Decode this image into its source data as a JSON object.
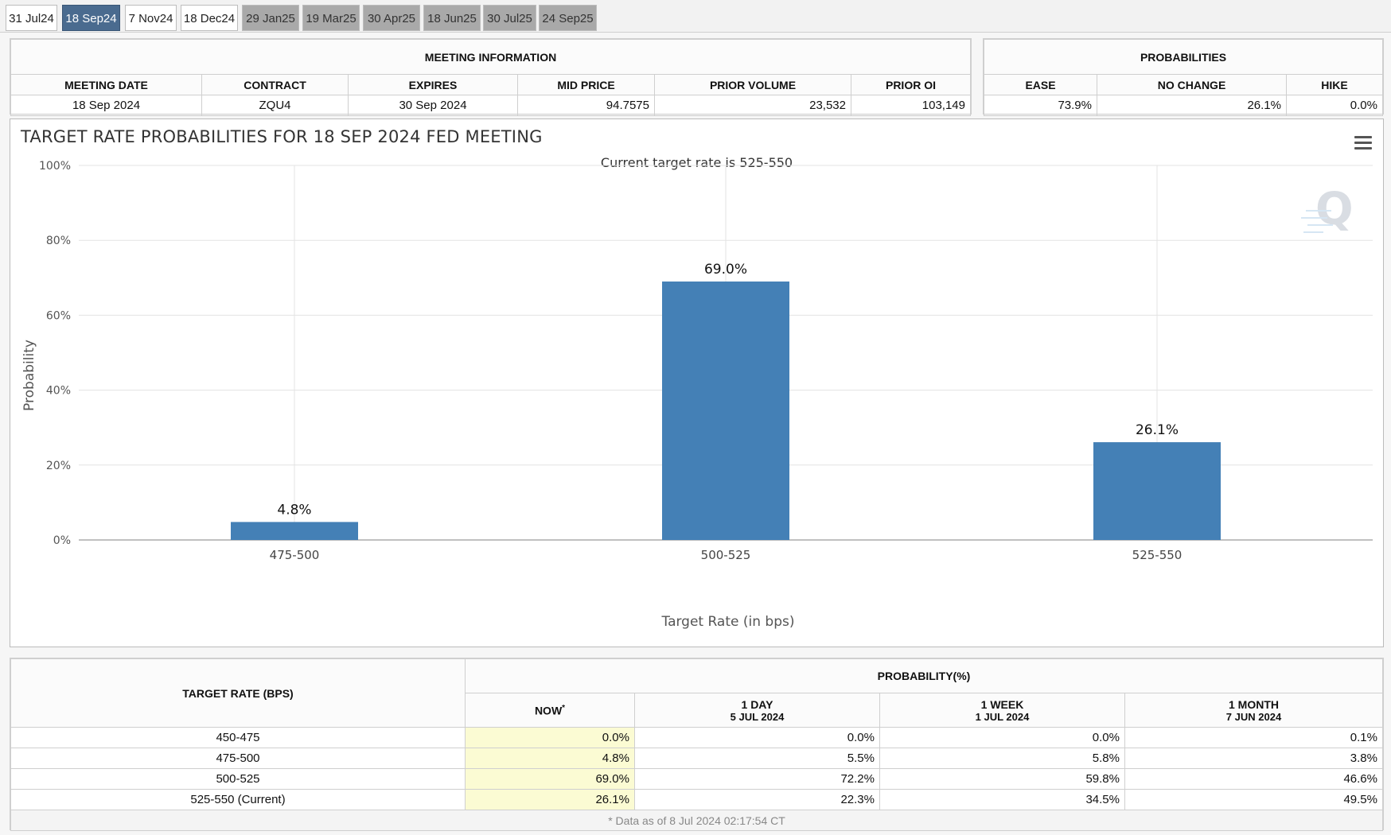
{
  "tabs": [
    {
      "label": "31 Jul24",
      "state": "plain"
    },
    {
      "label": "18 Sep24",
      "state": "active"
    },
    {
      "label": "7 Nov24",
      "state": "plain"
    },
    {
      "label": "18 Dec24",
      "state": "plain"
    },
    {
      "label": "29 Jan25",
      "state": "future"
    },
    {
      "label": "19 Mar25",
      "state": "future"
    },
    {
      "label": "30 Apr25",
      "state": "future"
    },
    {
      "label": "18 Jun25",
      "state": "future"
    },
    {
      "label": "30 Jul25",
      "state": "future"
    },
    {
      "label": "24 Sep25",
      "state": "future"
    }
  ],
  "meeting_info": {
    "section_title": "MEETING INFORMATION",
    "headers": [
      "MEETING DATE",
      "CONTRACT",
      "EXPIRES",
      "MID PRICE",
      "PRIOR VOLUME",
      "PRIOR OI"
    ],
    "values": [
      "18 Sep 2024",
      "ZQU4",
      "30 Sep 2024",
      "94.7575",
      "23,532",
      "103,149"
    ]
  },
  "probabilities": {
    "section_title": "PROBABILITIES",
    "headers": [
      "EASE",
      "NO CHANGE",
      "HIKE"
    ],
    "values": [
      "73.9%",
      "26.1%",
      "0.0%"
    ]
  },
  "chart_menu_icon": "hamburger-menu-icon",
  "chart_data": {
    "type": "bar",
    "title": "TARGET RATE PROBABILITIES FOR 18 SEP 2024 FED MEETING",
    "subtitle": "Current target rate is 525-550",
    "xlabel": "Target Rate (in bps)",
    "ylabel": "Probability",
    "categories": [
      "475-500",
      "500-525",
      "525-550"
    ],
    "values": [
      4.8,
      69.0,
      26.1
    ],
    "data_labels": [
      "4.8%",
      "69.0%",
      "26.1%"
    ],
    "ylim": [
      0,
      100
    ],
    "yticks": [
      "0%",
      "20%",
      "40%",
      "60%",
      "80%",
      "100%"
    ],
    "grid": true,
    "bar_color": "#4480b6"
  },
  "history": {
    "target_rate_header": "TARGET RATE (BPS)",
    "probability_header": "PROBABILITY(%)",
    "columns": [
      {
        "line1": "NOW",
        "line2": "",
        "marker": "*"
      },
      {
        "line1": "1 DAY",
        "line2": "5 JUL 2024",
        "marker": ""
      },
      {
        "line1": "1 WEEK",
        "line2": "1 JUL 2024",
        "marker": ""
      },
      {
        "line1": "1 MONTH",
        "line2": "7 JUN 2024",
        "marker": ""
      }
    ],
    "rows": [
      {
        "rate": "450-475",
        "values": [
          "0.0%",
          "0.0%",
          "0.0%",
          "0.1%"
        ]
      },
      {
        "rate": "475-500",
        "values": [
          "4.8%",
          "5.5%",
          "5.8%",
          "3.8%"
        ]
      },
      {
        "rate": "500-525",
        "values": [
          "69.0%",
          "72.2%",
          "59.8%",
          "46.6%"
        ]
      },
      {
        "rate": "525-550 (Current)",
        "values": [
          "26.1%",
          "22.3%",
          "34.5%",
          "49.5%"
        ]
      }
    ],
    "footnote": "* Data as of 8 Jul 2024 02:17:54 CT"
  }
}
